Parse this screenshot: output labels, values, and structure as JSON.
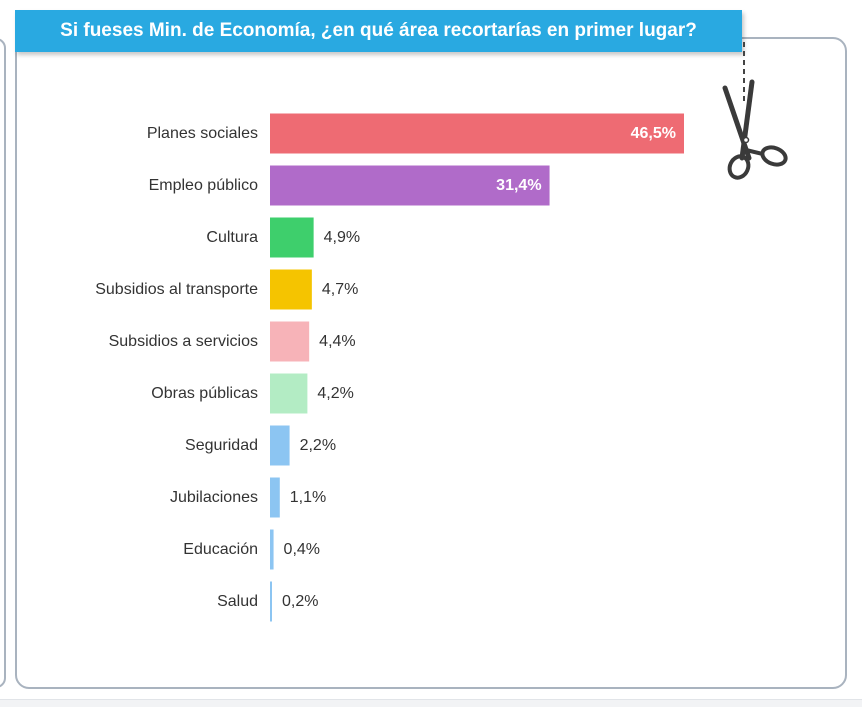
{
  "chart_data": {
    "type": "bar",
    "orientation": "horizontal",
    "title": "Si fueses Min. de Economía, ¿en qué área recortarías en primer lugar?",
    "categories": [
      "Planes sociales",
      "Empleo público",
      "Cultura",
      "Subsidios al transporte",
      "Subsidios a servicios",
      "Obras públicas",
      "Seguridad",
      "Jubilaciones",
      "Educación",
      "Salud"
    ],
    "values": [
      46.5,
      31.4,
      4.9,
      4.7,
      4.4,
      4.2,
      2.2,
      1.1,
      0.4,
      0.2
    ],
    "value_labels": [
      "46,5%",
      "31,4%",
      "4,9%",
      "4,7%",
      "4,4%",
      "4,2%",
      "2,2%",
      "1,1%",
      "0,4%",
      "0,2%"
    ],
    "colors": [
      "#ee6b73",
      "#b06bc9",
      "#3ecf6c",
      "#f5c400",
      "#f7b3b8",
      "#b3ecc4",
      "#8cc5f2",
      "#8cc5f2",
      "#8cc5f2",
      "#8cc5f2"
    ],
    "xlim": [
      0,
      46.5
    ],
    "grid": false,
    "legend": "none",
    "xlabel": "",
    "ylabel": ""
  },
  "accent_color": "#29a9e1",
  "icons": {
    "scissors": "scissors-icon"
  }
}
